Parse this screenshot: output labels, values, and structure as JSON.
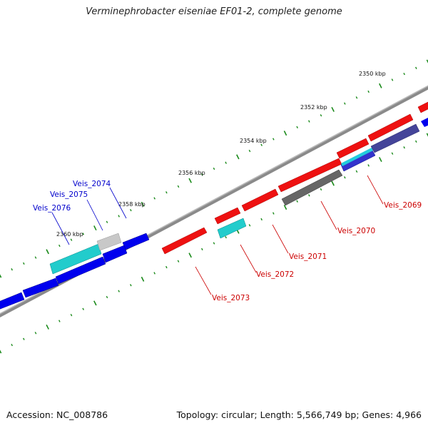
{
  "title": "Verminephrobacter eiseniae EF01-2, complete genome",
  "footer": {
    "accession": "Accession: NC_008786",
    "summary": "Topology: circular; Length: 5,566,749 bp; Genes: 4,966"
  },
  "colors": {
    "forward_gene": "#ff0000",
    "reverse_gene": "#0000ee",
    "rna_gene": "#00cccc",
    "pseudo_gene": "#666666",
    "tick": "#1a8a1a",
    "backbone": "#888888",
    "reverse_label": "#0000cc",
    "forward_label": "#cc0000"
  },
  "kbp_ticks": [
    {
      "label": "2350 kbp"
    },
    {
      "label": "2352 kbp"
    },
    {
      "label": "2354 kbp"
    },
    {
      "label": "2356 kbp"
    },
    {
      "label": "2358 kbp"
    },
    {
      "label": "2360 kbp"
    }
  ],
  "gene_labels": [
    {
      "label": "Veis_2074",
      "strand": "reverse"
    },
    {
      "label": "Veis_2075",
      "strand": "reverse"
    },
    {
      "label": "Veis_2076",
      "strand": "reverse"
    },
    {
      "label": "Veis_2069",
      "strand": "forward"
    },
    {
      "label": "Veis_2070",
      "strand": "forward"
    },
    {
      "label": "Veis_2071",
      "strand": "forward"
    },
    {
      "label": "Veis_2072",
      "strand": "forward"
    },
    {
      "label": "Veis_2073",
      "strand": "forward"
    }
  ]
}
